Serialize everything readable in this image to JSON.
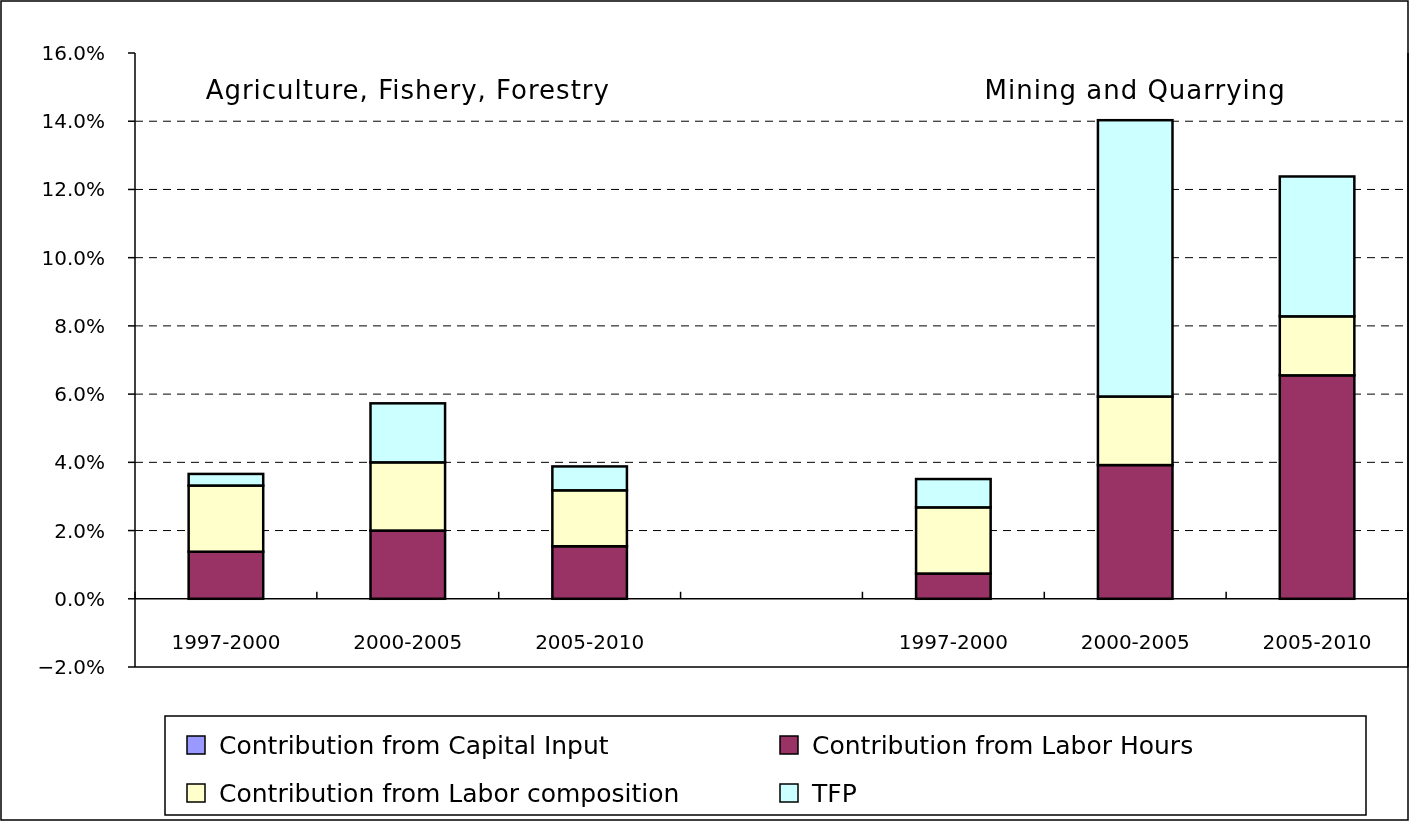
{
  "chart_data": {
    "type": "bar",
    "stacked": true,
    "categories": [
      "1997-2000",
      "2000-2005",
      "2005-2010",
      null,
      "1997-2000",
      "2000-2005",
      "2005-2010"
    ],
    "series": [
      {
        "name": "Contribution from Capital Input",
        "color": "#9999ff",
        "values": [
          0,
          0,
          0,
          null,
          0,
          0,
          0
        ]
      },
      {
        "name": "Contribution from Labor Hours",
        "color": "#993366",
        "values": [
          1.38,
          2.0,
          1.54,
          null,
          0.74,
          3.92,
          6.55
        ]
      },
      {
        "name": "Contribution from Labor composition",
        "color": "#ffffcc",
        "values": [
          1.94,
          2.0,
          1.64,
          null,
          1.94,
          2.01,
          1.73
        ]
      },
      {
        "name": "TFP",
        "color": "#ccffff",
        "values": [
          0.34,
          1.73,
          0.7,
          null,
          0.83,
          8.1,
          4.1
        ]
      }
    ],
    "ylim": [
      -2,
      16
    ],
    "yticks": [
      {
        "value": -2,
        "label": "−2.0%"
      },
      {
        "value": 0,
        "label": "0.0%"
      },
      {
        "value": 2,
        "label": "2.0%"
      },
      {
        "value": 4,
        "label": "4.0%"
      },
      {
        "value": 6,
        "label": "6.0%"
      },
      {
        "value": 8,
        "label": "8.0%"
      },
      {
        "value": 10,
        "label": "10.0%"
      },
      {
        "value": 12,
        "label": "12.0%"
      },
      {
        "value": 14,
        "label": "14.0%"
      },
      {
        "value": 16,
        "label": "16.0%"
      }
    ],
    "grid": "y",
    "legend": "bottom",
    "annotations": [
      "Agriculture, Fishery, Forestry",
      "Mining and Quarrying"
    ]
  }
}
